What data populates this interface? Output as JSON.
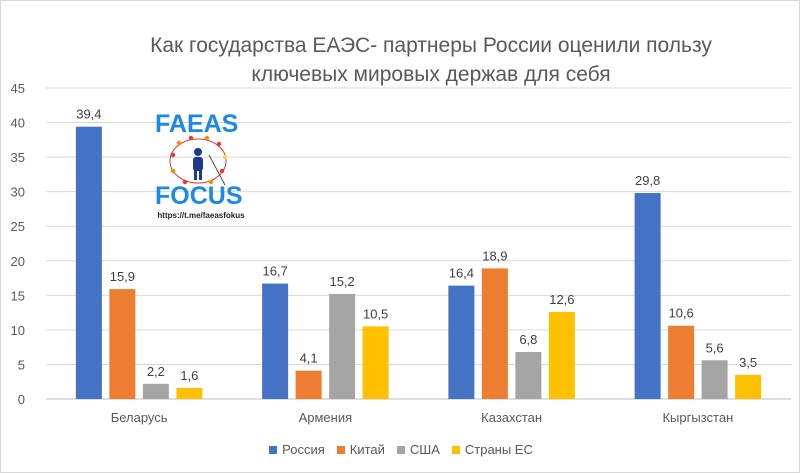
{
  "chart_data": {
    "type": "bar",
    "title_lines": [
      "Как государства ЕАЭС- партнеры России оценили пользу",
      "ключевых мировых держав для себя"
    ],
    "categories": [
      "Беларусь",
      "Армения",
      "Казахстан",
      "Кыргызстан"
    ],
    "series": [
      {
        "name": "Россия",
        "color": "#4472c4",
        "values": [
          39.4,
          16.7,
          16.4,
          29.8
        ],
        "labels": [
          "39,4",
          "16,7",
          "16,4",
          "29,8"
        ]
      },
      {
        "name": "Китай",
        "color": "#ed7d31",
        "values": [
          15.9,
          4.1,
          18.9,
          10.6
        ],
        "labels": [
          "15,9",
          "4,1",
          "18,9",
          "10,6"
        ]
      },
      {
        "name": "США",
        "color": "#a5a5a5",
        "values": [
          2.2,
          15.2,
          6.8,
          5.6
        ],
        "labels": [
          "2,2",
          "15,2",
          "6,8",
          "5,6"
        ]
      },
      {
        "name": "Страны ЕС",
        "color": "#ffc000",
        "values": [
          1.6,
          10.5,
          12.6,
          3.5
        ],
        "labels": [
          "1,6",
          "10,5",
          "12,6",
          "3,5"
        ]
      }
    ],
    "ylim": [
      0,
      45
    ],
    "yticks": [
      "0",
      "5",
      "10",
      "15",
      "20",
      "25",
      "30",
      "35",
      "40",
      "45"
    ],
    "grid": true,
    "legend_position": "bottom"
  },
  "logo": {
    "text_top": "FAEAS",
    "text_bottom": "FOCUS",
    "url": "https://t.me/faeasfokus"
  }
}
